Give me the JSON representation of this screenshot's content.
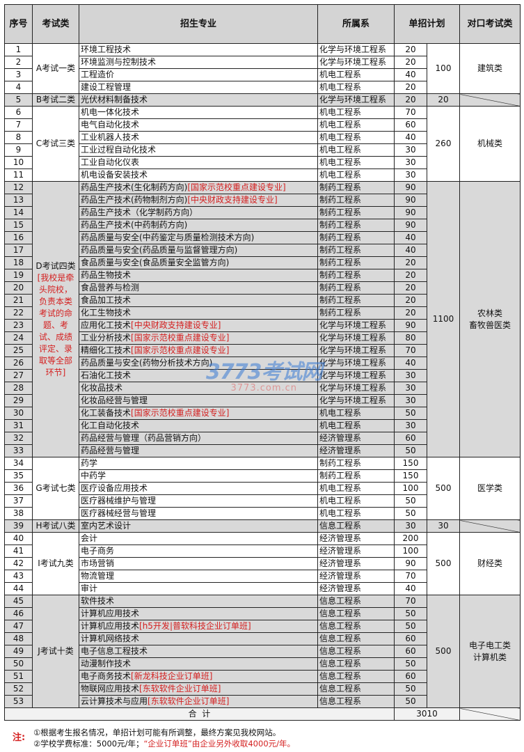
{
  "headers": {
    "no": "序号",
    "exam_type": "考试类",
    "major": "招生专业",
    "dept": "所属系",
    "plan": "单招计划",
    "counterpart": "对口考试类"
  },
  "groups": [
    {
      "exam_type": "A考试一类",
      "total": "100",
      "counterpart": "建筑类",
      "rows": [
        {
          "no": "1",
          "major": "环境工程技术",
          "dept": "化学与环境工程系",
          "plan": "20"
        },
        {
          "no": "2",
          "major": "环境监测与控制技术",
          "dept": "化学与环境工程系",
          "plan": "20"
        },
        {
          "no": "3",
          "major": "工程造价",
          "dept": "机电工程系",
          "plan": "40"
        },
        {
          "no": "4",
          "major": "建设工程管理",
          "dept": "机电工程系",
          "plan": "20"
        }
      ]
    },
    {
      "exam_type": "B考试二类",
      "total": "20",
      "counterpart": "",
      "rows": [
        {
          "no": "5",
          "major": "光伏材料制备技术",
          "dept": "化学与环境工程系",
          "plan": "20"
        }
      ]
    },
    {
      "exam_type": "C考试三类",
      "total": "260",
      "counterpart": "机械类",
      "rows": [
        {
          "no": "6",
          "major": "机电一体化技术",
          "dept": "机电工程系",
          "plan": "70"
        },
        {
          "no": "7",
          "major": "电气自动化技术",
          "dept": "机电工程系",
          "plan": "60"
        },
        {
          "no": "8",
          "major": "工业机器人技术",
          "dept": "机电工程系",
          "plan": "40"
        },
        {
          "no": "9",
          "major": "工业过程自动化技术",
          "dept": "机电工程系",
          "plan": "30"
        },
        {
          "no": "10",
          "major": "工业自动化仪表",
          "dept": "机电工程系",
          "plan": "30"
        },
        {
          "no": "11",
          "major": "机电设备安装技术",
          "dept": "机电工程系",
          "plan": "30"
        }
      ]
    },
    {
      "exam_type": "D考试四类",
      "exam_note": "[我校是牵头院校，负责本类考试的命题、考试、成绩评定、录取等全部环节]",
      "total": "1100",
      "counterpart": "农林类\n畜牧兽医类",
      "rows": [
        {
          "no": "12",
          "major": "药品生产技术(生化制药方向)",
          "tag": "[国家示范校重点建设专业]",
          "dept": "制药工程系",
          "plan": "90"
        },
        {
          "no": "13",
          "major": "药品生产技术(药物制剂方向)",
          "tag": "[中央财政支持建设专业]",
          "dept": "制药工程系",
          "plan": "90"
        },
        {
          "no": "14",
          "major": "药品生产技术（化学制药方向）",
          "dept": "制药工程系",
          "plan": "90"
        },
        {
          "no": "15",
          "major": "药品生产技术(中药制药方向)",
          "dept": "制药工程系",
          "plan": "90"
        },
        {
          "no": "16",
          "major": "药品质量与安全(中药鉴定与质量检测技术方向)",
          "dept": "制药工程系",
          "plan": "40"
        },
        {
          "no": "17",
          "major": "药品质量与安全(药品质量与监督管理方向)",
          "dept": "制药工程系",
          "plan": "40"
        },
        {
          "no": "18",
          "major": "食品质量与安全(食品质量安全监管方向)",
          "dept": "制药工程系",
          "plan": "20"
        },
        {
          "no": "19",
          "major": "药品生物技术",
          "dept": "制药工程系",
          "plan": "20"
        },
        {
          "no": "20",
          "major": "食品营养与检测",
          "dept": "制药工程系",
          "plan": "20"
        },
        {
          "no": "21",
          "major": "食品加工技术",
          "dept": "制药工程系",
          "plan": "20"
        },
        {
          "no": "22",
          "major": "化工生物技术",
          "dept": "制药工程系",
          "plan": "20"
        },
        {
          "no": "23",
          "major": "应用化工技术",
          "tag": "[中央财政支持建设专业]",
          "dept": "化学与环境工程系",
          "plan": "90"
        },
        {
          "no": "24",
          "major": "工业分析技术",
          "tag": "[国家示范校重点建设专业]",
          "dept": "化学与环境工程系",
          "plan": "80"
        },
        {
          "no": "25",
          "major": "精细化工技术",
          "tag": "[国家示范校重点建设专业]",
          "dept": "化学与环境工程系",
          "plan": "70"
        },
        {
          "no": "26",
          "major": "药品质量与安全(药物分析技术方向)",
          "dept": "化学与环境工程系",
          "plan": "40"
        },
        {
          "no": "27",
          "major": "石油化工技术",
          "dept": "化学与环境工程系",
          "plan": "30"
        },
        {
          "no": "28",
          "major": "化妆品技术",
          "dept": "化学与环境工程系",
          "plan": "30"
        },
        {
          "no": "29",
          "major": "化妆品经营与管理",
          "dept": "化学与环境工程系",
          "plan": "30"
        },
        {
          "no": "30",
          "major": "化工装备技术",
          "tag": "[国家示范校重点建设专业]",
          "dept": "机电工程系",
          "plan": "50"
        },
        {
          "no": "31",
          "major": "化工自动化技术",
          "dept": "机电工程系",
          "plan": "30"
        },
        {
          "no": "32",
          "major": "药品经营与管理（药品营销方向）",
          "dept": "经济管理系",
          "plan": "60"
        },
        {
          "no": "33",
          "major": "药品经营与管理",
          "dept": "经济管理系",
          "plan": "50"
        }
      ]
    },
    {
      "exam_type": "G考试七类",
      "total": "500",
      "counterpart": "医学类",
      "rows": [
        {
          "no": "34",
          "major": "药学",
          "dept": "制药工程系",
          "plan": "150"
        },
        {
          "no": "35",
          "major": "中药学",
          "dept": "制药工程系",
          "plan": "150"
        },
        {
          "no": "36",
          "major": "医疗设备应用技术",
          "dept": "机电工程系",
          "plan": "100"
        },
        {
          "no": "37",
          "major": "医疗器械维护与管理",
          "dept": "机电工程系",
          "plan": "50"
        },
        {
          "no": "38",
          "major": "医疗器械经营与管理",
          "dept": "机电工程系",
          "plan": "50"
        }
      ]
    },
    {
      "exam_type": "H考试八类",
      "total": "30",
      "counterpart": "",
      "rows": [
        {
          "no": "39",
          "major": "室内艺术设计",
          "dept": "信息工程系",
          "plan": "30"
        }
      ]
    },
    {
      "exam_type": "I考试九类",
      "total": "500",
      "counterpart": "财经类",
      "rows": [
        {
          "no": "40",
          "major": "会计",
          "dept": "经济管理系",
          "plan": "200"
        },
        {
          "no": "41",
          "major": "电子商务",
          "dept": "经济管理系",
          "plan": "100"
        },
        {
          "no": "42",
          "major": "市场营销",
          "dept": "经济管理系",
          "plan": "90"
        },
        {
          "no": "43",
          "major": "物流管理",
          "dept": "经济管理系",
          "plan": "70"
        },
        {
          "no": "44",
          "major": "审计",
          "dept": "经济管理系",
          "plan": "40"
        }
      ]
    },
    {
      "exam_type": "J考试十类",
      "total": "500",
      "counterpart": "电子电工类\n计算机类",
      "rows": [
        {
          "no": "45",
          "major": "软件技术",
          "dept": "信息工程系",
          "plan": "70"
        },
        {
          "no": "46",
          "major": "计算机应用技术",
          "dept": "信息工程系",
          "plan": "50"
        },
        {
          "no": "47",
          "major": "计算机应用技术",
          "tag": "[h5开发|普软科技企业订单班]",
          "dept": "信息工程系",
          "plan": "50"
        },
        {
          "no": "48",
          "major": "计算机网络技术",
          "dept": "信息工程系",
          "plan": "60"
        },
        {
          "no": "49",
          "major": "电子信息工程技术",
          "dept": "信息工程系",
          "plan": "60"
        },
        {
          "no": "50",
          "major": "动漫制作技术",
          "dept": "信息工程系",
          "plan": "50"
        },
        {
          "no": "51",
          "major": "电子商务技术",
          "tag": "[新龙科技企业订单班]",
          "dept": "信息工程系",
          "plan": "60"
        },
        {
          "no": "52",
          "major": "物联网应用技术",
          "tag": "[东软软件企业订单班]",
          "dept": "信息工程系",
          "plan": "50"
        },
        {
          "no": "53",
          "major": "云计算技术与应用",
          "tag": "[东软软件企业订单班]",
          "dept": "信息工程系",
          "plan": "50"
        }
      ]
    }
  ],
  "total_row": {
    "label": "合  计",
    "value": "3010"
  },
  "notes": {
    "label": "注:",
    "line1": "①根据考生报名情况，单招计划可能有所调整，最终方案见我校网站。",
    "line2_prefix": "②学校学费标准：5000元/年；",
    "line2_red": "“企业订单班”由企业另外收取4000元/年。"
  },
  "watermark": {
    "logo": "3773考试网",
    "url": "3773.com.cn"
  },
  "colors": {
    "header_bg": "#d4d4d4",
    "group_bg": "#d9d9d9",
    "highlight": "#d42020"
  }
}
